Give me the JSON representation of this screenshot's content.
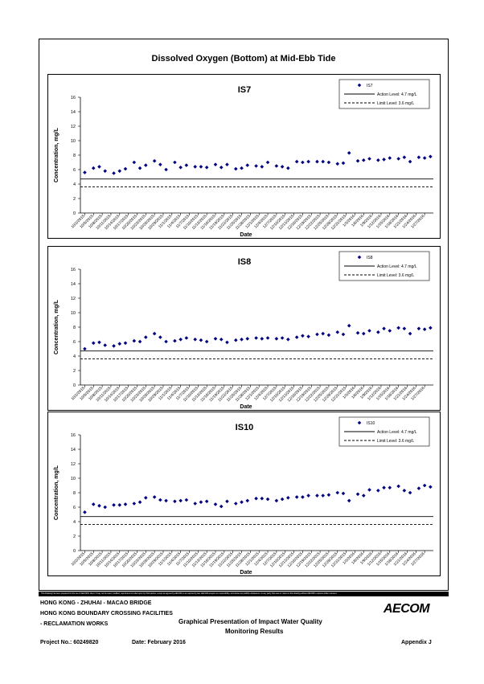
{
  "page": {
    "title": "Dissolved Oxygen (Bottom) at Mid-Ebb Tide"
  },
  "chart_data": [
    {
      "type": "scatter",
      "title": "IS7",
      "xlabel": "Date",
      "ylabel": "Concentration, mg/L",
      "ylim": [
        0,
        16
      ],
      "yticks": [
        "0",
        "2",
        "4",
        "6",
        "8",
        "10",
        "12",
        "14",
        "16"
      ],
      "xticks": [
        "10/2/2015",
        "10/5/2015",
        "10/8/2015",
        "10/11/2015",
        "10/14/2015",
        "10/17/2015",
        "10/20/2015",
        "10/23/2015",
        "10/26/2015",
        "10/29/2015",
        "11/1/2015",
        "11/4/2015",
        "11/7/2015",
        "11/10/2015",
        "11/13/2015",
        "11/16/2015",
        "11/19/2015",
        "11/22/2015",
        "11/25/2015",
        "11/28/2015",
        "12/1/2015",
        "12/4/2015",
        "12/7/2015",
        "12/10/2015",
        "12/13/2015",
        "12/16/2015",
        "12/19/2015",
        "12/22/2015",
        "12/25/2015",
        "12/28/2015",
        "12/31/2015",
        "1/3/2016",
        "1/6/2016",
        "1/9/2016",
        "1/12/2016",
        "1/15/2016",
        "1/18/2016",
        "1/21/2016",
        "1/24/2016",
        "1/27/2016"
      ],
      "grid": false,
      "legend_position": "top-right",
      "series": [
        {
          "name": "IS7",
          "color": "#000080",
          "marker": "diamond",
          "points": [
            [
              "10/2/2015",
              5.6
            ],
            [
              "10/5/2015",
              6.2
            ],
            [
              "10/7/2015",
              6.4
            ],
            [
              "10/9/2015",
              5.8
            ],
            [
              "10/12/2015",
              5.5
            ],
            [
              "10/14/2015",
              5.8
            ],
            [
              "10/16/2015",
              6.1
            ],
            [
              "10/19/2015",
              7.0
            ],
            [
              "10/21/2015",
              6.2
            ],
            [
              "10/23/2015",
              6.6
            ],
            [
              "10/26/2015",
              7.2
            ],
            [
              "10/28/2015",
              6.7
            ],
            [
              "10/30/2015",
              6.0
            ],
            [
              "11/2/2015",
              7.0
            ],
            [
              "11/4/2015",
              6.3
            ],
            [
              "11/6/2015",
              6.6
            ],
            [
              "11/9/2015",
              6.4
            ],
            [
              "11/11/2015",
              6.4
            ],
            [
              "11/13/2015",
              6.3
            ],
            [
              "11/16/2015",
              6.7
            ],
            [
              "11/18/2015",
              6.3
            ],
            [
              "11/20/2015",
              6.7
            ],
            [
              "11/23/2015",
              6.1
            ],
            [
              "11/25/2015",
              6.2
            ],
            [
              "11/27/2015",
              6.6
            ],
            [
              "11/30/2015",
              6.5
            ],
            [
              "12/2/2015",
              6.4
            ],
            [
              "12/4/2015",
              7.0
            ],
            [
              "12/7/2015",
              6.5
            ],
            [
              "12/9/2015",
              6.4
            ],
            [
              "12/11/2015",
              6.2
            ],
            [
              "12/14/2015",
              7.1
            ],
            [
              "12/16/2015",
              7.0
            ],
            [
              "12/18/2015",
              7.1
            ],
            [
              "12/21/2015",
              7.1
            ],
            [
              "12/23/2015",
              7.1
            ],
            [
              "12/25/2015",
              7.0
            ],
            [
              "12/28/2015",
              6.8
            ],
            [
              "12/30/2015",
              6.9
            ],
            [
              "1/1/2016",
              8.3
            ],
            [
              "1/4/2016",
              7.2
            ],
            [
              "1/6/2016",
              7.3
            ],
            [
              "1/8/2016",
              7.5
            ],
            [
              "1/11/2016",
              7.3
            ],
            [
              "1/13/2016",
              7.4
            ],
            [
              "1/15/2016",
              7.6
            ],
            [
              "1/18/2016",
              7.5
            ],
            [
              "1/20/2016",
              7.7
            ],
            [
              "1/22/2016",
              7.1
            ],
            [
              "1/25/2016",
              7.7
            ],
            [
              "1/27/2016",
              7.6
            ],
            [
              "1/29/2016",
              7.8
            ]
          ]
        },
        {
          "name": "Action Level: 4.7 mg/L",
          "style": "solid",
          "values": [
            4.7
          ]
        },
        {
          "name": "Limit Level: 3.6 mg/L",
          "style": "dashed",
          "values": [
            3.6
          ]
        }
      ]
    },
    {
      "type": "scatter",
      "title": "IS8",
      "xlabel": "Date",
      "ylabel": "Concentration, mg/L",
      "ylim": [
        0,
        16
      ],
      "yticks": [
        "0",
        "2",
        "4",
        "6",
        "8",
        "10",
        "12",
        "14",
        "16"
      ],
      "xticks": [
        "10/2/2015",
        "10/5/2015",
        "10/8/2015",
        "10/11/2015",
        "10/14/2015",
        "10/17/2015",
        "10/20/2015",
        "10/23/2015",
        "10/26/2015",
        "10/29/2015",
        "11/1/2015",
        "11/4/2015",
        "11/7/2015",
        "11/10/2015",
        "11/13/2015",
        "11/16/2015",
        "11/19/2015",
        "11/22/2015",
        "11/25/2015",
        "11/28/2015",
        "12/1/2015",
        "12/4/2015",
        "12/7/2015",
        "12/10/2015",
        "12/13/2015",
        "12/16/2015",
        "12/19/2015",
        "12/22/2015",
        "12/25/2015",
        "12/28/2015",
        "12/31/2015",
        "1/3/2016",
        "1/6/2016",
        "1/9/2016",
        "1/12/2016",
        "1/15/2016",
        "1/18/2016",
        "1/21/2016",
        "1/24/2016",
        "1/27/2016"
      ],
      "grid": false,
      "legend_position": "top-right",
      "series": [
        {
          "name": "IS8",
          "color": "#000080",
          "marker": "diamond",
          "points": [
            [
              "10/2/2015",
              5.0
            ],
            [
              "10/5/2015",
              5.8
            ],
            [
              "10/7/2015",
              5.9
            ],
            [
              "10/9/2015",
              5.5
            ],
            [
              "10/12/2015",
              5.4
            ],
            [
              "10/14/2015",
              5.7
            ],
            [
              "10/16/2015",
              5.8
            ],
            [
              "10/19/2015",
              6.1
            ],
            [
              "10/21/2015",
              6.0
            ],
            [
              "10/23/2015",
              6.6
            ],
            [
              "10/26/2015",
              7.1
            ],
            [
              "10/28/2015",
              6.6
            ],
            [
              "10/30/2015",
              6.0
            ],
            [
              "11/2/2015",
              6.1
            ],
            [
              "11/4/2015",
              6.3
            ],
            [
              "11/6/2015",
              6.5
            ],
            [
              "11/9/2015",
              6.3
            ],
            [
              "11/11/2015",
              6.2
            ],
            [
              "11/13/2015",
              6.0
            ],
            [
              "11/16/2015",
              6.4
            ],
            [
              "11/18/2015",
              6.3
            ],
            [
              "11/20/2015",
              5.9
            ],
            [
              "11/23/2015",
              6.2
            ],
            [
              "11/25/2015",
              6.3
            ],
            [
              "11/27/2015",
              6.4
            ],
            [
              "11/30/2015",
              6.5
            ],
            [
              "12/2/2015",
              6.4
            ],
            [
              "12/4/2015",
              6.5
            ],
            [
              "12/7/2015",
              6.4
            ],
            [
              "12/9/2015",
              6.5
            ],
            [
              "12/11/2015",
              6.3
            ],
            [
              "12/14/2015",
              6.6
            ],
            [
              "12/16/2015",
              6.8
            ],
            [
              "12/18/2015",
              6.7
            ],
            [
              "12/21/2015",
              7.0
            ],
            [
              "12/23/2015",
              7.1
            ],
            [
              "12/25/2015",
              6.9
            ],
            [
              "12/28/2015",
              7.3
            ],
            [
              "12/30/2015",
              7.0
            ],
            [
              "1/1/2016",
              8.2
            ],
            [
              "1/4/2016",
              7.2
            ],
            [
              "1/6/2016",
              7.1
            ],
            [
              "1/8/2016",
              7.5
            ],
            [
              "1/11/2016",
              7.3
            ],
            [
              "1/13/2016",
              7.8
            ],
            [
              "1/15/2016",
              7.5
            ],
            [
              "1/18/2016",
              7.9
            ],
            [
              "1/20/2016",
              7.8
            ],
            [
              "1/22/2016",
              7.1
            ],
            [
              "1/25/2016",
              7.8
            ],
            [
              "1/27/2016",
              7.7
            ],
            [
              "1/29/2016",
              7.9
            ]
          ]
        },
        {
          "name": "Action Level: 4.7 mg/L",
          "style": "solid",
          "values": [
            4.7
          ]
        },
        {
          "name": "Limit Level: 3.6 mg/L",
          "style": "dashed",
          "values": [
            3.6
          ]
        }
      ]
    },
    {
      "type": "scatter",
      "title": "IS10",
      "xlabel": "Date",
      "ylabel": "Concentration, mg/L",
      "ylim": [
        0,
        16
      ],
      "yticks": [
        "0",
        "2",
        "4",
        "6",
        "8",
        "10",
        "12",
        "14",
        "16"
      ],
      "xticks": [
        "10/2/2015",
        "10/5/2015",
        "10/8/2015",
        "10/11/2015",
        "10/14/2015",
        "10/17/2015",
        "10/20/2015",
        "10/23/2015",
        "10/26/2015",
        "10/29/2015",
        "11/1/2015",
        "11/4/2015",
        "11/7/2015",
        "11/10/2015",
        "11/13/2015",
        "11/16/2015",
        "11/19/2015",
        "11/22/2015",
        "11/25/2015",
        "11/28/2015",
        "12/1/2015",
        "12/4/2015",
        "12/7/2015",
        "12/10/2015",
        "12/13/2015",
        "12/16/2015",
        "12/19/2015",
        "12/22/2015",
        "12/25/2015",
        "12/28/2015",
        "12/31/2015",
        "1/3/2016",
        "1/6/2016",
        "1/9/2016",
        "1/12/2016",
        "1/15/2016",
        "1/18/2016",
        "1/21/2016",
        "1/24/2016",
        "1/27/2016"
      ],
      "grid": false,
      "legend_position": "top-right",
      "series": [
        {
          "name": "IS10",
          "color": "#000080",
          "marker": "diamond",
          "points": [
            [
              "10/2/2015",
              5.3
            ],
            [
              "10/5/2015",
              6.4
            ],
            [
              "10/7/2015",
              6.2
            ],
            [
              "10/9/2015",
              6.0
            ],
            [
              "10/12/2015",
              6.3
            ],
            [
              "10/14/2015",
              6.3
            ],
            [
              "10/16/2015",
              6.4
            ],
            [
              "10/19/2015",
              6.5
            ],
            [
              "10/21/2015",
              6.7
            ],
            [
              "10/23/2015",
              7.3
            ],
            [
              "10/26/2015",
              7.4
            ],
            [
              "10/28/2015",
              7.0
            ],
            [
              "10/30/2015",
              6.9
            ],
            [
              "11/2/2015",
              6.8
            ],
            [
              "11/4/2015",
              6.9
            ],
            [
              "11/6/2015",
              7.0
            ],
            [
              "11/9/2015",
              6.5
            ],
            [
              "11/11/2015",
              6.7
            ],
            [
              "11/13/2015",
              6.8
            ],
            [
              "11/16/2015",
              6.4
            ],
            [
              "11/18/2015",
              6.1
            ],
            [
              "11/20/2015",
              6.8
            ],
            [
              "11/23/2015",
              6.5
            ],
            [
              "11/25/2015",
              6.7
            ],
            [
              "11/27/2015",
              6.9
            ],
            [
              "11/30/2015",
              7.2
            ],
            [
              "12/2/2015",
              7.2
            ],
            [
              "12/4/2015",
              7.1
            ],
            [
              "12/7/2015",
              6.9
            ],
            [
              "12/9/2015",
              7.1
            ],
            [
              "12/11/2015",
              7.3
            ],
            [
              "12/14/2015",
              7.4
            ],
            [
              "12/16/2015",
              7.4
            ],
            [
              "12/18/2015",
              7.6
            ],
            [
              "12/21/2015",
              7.6
            ],
            [
              "12/23/2015",
              7.6
            ],
            [
              "12/25/2015",
              7.7
            ],
            [
              "12/28/2015",
              8.0
            ],
            [
              "12/30/2015",
              7.9
            ],
            [
              "1/1/2016",
              6.9
            ],
            [
              "1/4/2016",
              7.8
            ],
            [
              "1/6/2016",
              7.6
            ],
            [
              "1/8/2016",
              8.4
            ],
            [
              "1/11/2016",
              8.3
            ],
            [
              "1/13/2016",
              8.7
            ],
            [
              "1/15/2016",
              8.7
            ],
            [
              "1/18/2016",
              8.9
            ],
            [
              "1/20/2016",
              8.3
            ],
            [
              "1/22/2016",
              8.0
            ],
            [
              "1/25/2016",
              8.6
            ],
            [
              "1/27/2016",
              9.0
            ],
            [
              "1/29/2016",
              8.8
            ]
          ]
        },
        {
          "name": "Action Level: 4.7 mg/L",
          "style": "solid",
          "values": [
            4.7
          ]
        },
        {
          "name": "Limit Level: 3.6 mg/L",
          "style": "dashed",
          "values": [
            3.6
          ]
        }
      ]
    }
  ],
  "footer": {
    "disclaimer": "This Drawing has been prepared for the use of AECOM's client. It may not be used, modified, reproduced or relied upon by third parties, except as agreed by AECOM or as required by law. AECOM accepts no responsibility, and denies any liability whatsoever, to any party that uses or relies on this drawing without AECOM's express written consent.",
    "project_line1": "HONG KONG - ZHUHAI - MACAO BRIDGE",
    "project_line2": "HONG KONG BOUNDARY CROSSING FACILITIES",
    "project_line3": "- RECLAMATION WORKS",
    "figure_title_line1": "Graphical Presentation of Impact Water Quality",
    "figure_title_line2": "Monitoring Results",
    "project_no": "Project No.: 60249820",
    "date": "Date: February 2016",
    "appendix": "Appendix J",
    "logo_text": "AECOM"
  }
}
